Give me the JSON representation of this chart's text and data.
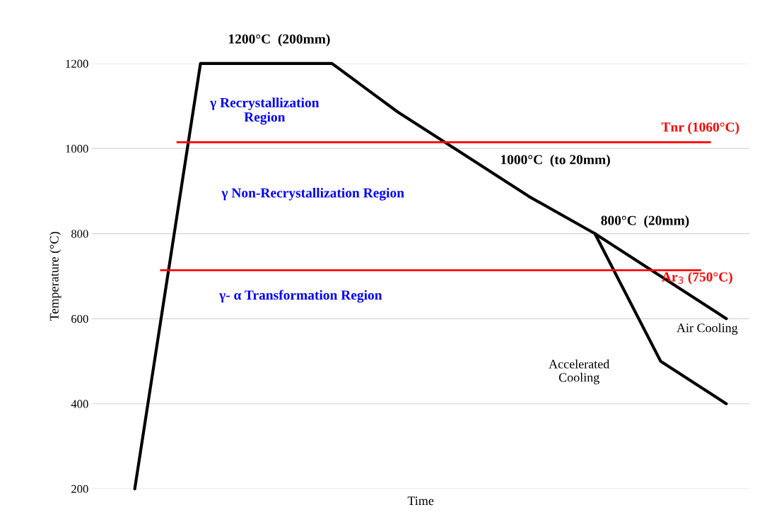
{
  "chart_data": {
    "type": "line",
    "xlabel": "Time",
    "ylabel": "Temperature (°C)",
    "categories": [
      null,
      null,
      null,
      null,
      null,
      null,
      null,
      null,
      null,
      null
    ],
    "ylim": [
      200,
      1200
    ],
    "yticks": [
      200,
      400,
      600,
      800,
      1000,
      1200
    ],
    "grid": "y",
    "marker": "none",
    "line_style": "solid",
    "series": [
      {
        "color": "#000000",
        "values": [
          200,
          1200,
          1200,
          1200,
          1086,
          987,
          887,
          800,
          700,
          600
        ]
      },
      {
        "color": "#000000",
        "values": [
          null,
          null,
          null,
          null,
          null,
          null,
          null,
          800,
          500,
          400
        ]
      }
    ],
    "ref_lines": [
      {
        "axis": "y",
        "value": 1015,
        "label": "Tnr (1060°C)",
        "color": "#ff0000"
      },
      {
        "axis": "y",
        "value": 714,
        "label": "Ar$_{3}$ (750°C)",
        "color": "#ff0000"
      }
    ],
    "annotations": [
      "1200°C  (200mm)",
      "γ Recrystallization\nRegion",
      "1000°C  (to 20mm)",
      "γ Non-Recrystallization Region",
      "800°C  (20mm)",
      "γ- α Transformation Region",
      "Air Cooling",
      "Accelerated\nCooling"
    ]
  }
}
